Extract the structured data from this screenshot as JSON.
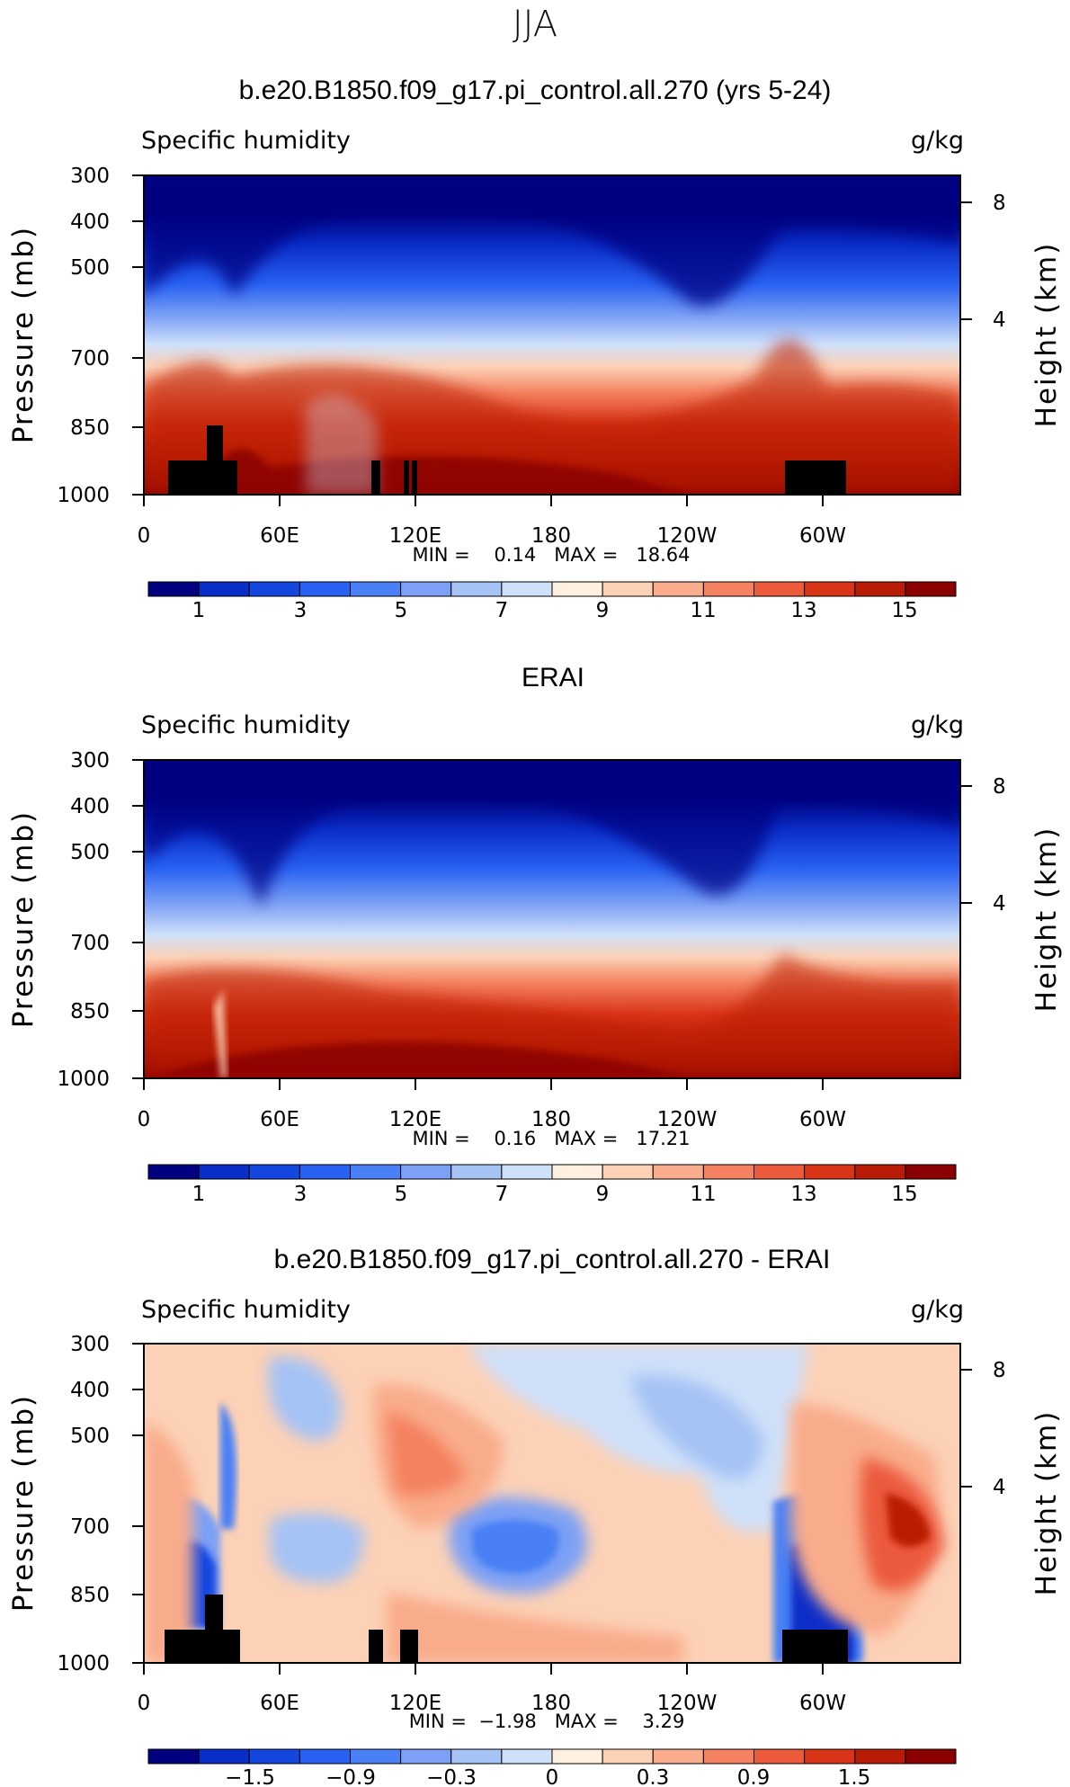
{
  "page": {
    "title": "JJA"
  },
  "colors": {
    "seq": [
      "#000080",
      "#0a2ec8",
      "#1446e0",
      "#2861f2",
      "#4a80f5",
      "#7ba0f5",
      "#a6c3f5",
      "#cfe0f9",
      "#fff0e2",
      "#fcd1b6",
      "#f9ac8b",
      "#f4815f",
      "#ec5a3c",
      "#d93417",
      "#b91c06",
      "#8a0000"
    ],
    "diff": [
      "#000080",
      "#0a2ec8",
      "#1446e0",
      "#2861f2",
      "#4a80f5",
      "#7ba0f5",
      "#a6c3f5",
      "#cfe0f9",
      "#fff0e2",
      "#fcd1b6",
      "#f9ac8b",
      "#f4815f",
      "#ec5a3c",
      "#d93417",
      "#b91c06",
      "#8a0000"
    ]
  },
  "chart_data": [
    {
      "type": "heatmap",
      "title": "b.e20.B1850.f09_g17.pi_control.all.270 (yrs 5-24)",
      "left_label": "Specific humidity",
      "right_label": "g/kg",
      "ylabel": "Pressure (mb)",
      "y2label": "Height (km)",
      "y_ticks": [
        "300",
        "400",
        "500",
        "700",
        "850",
        "1000"
      ],
      "y2_ticks": [
        "8",
        "4"
      ],
      "x_ticks": [
        "0",
        "60E",
        "120E",
        "180",
        "120W",
        "60W"
      ],
      "x_range": [
        0,
        360
      ],
      "y_range": [
        1000,
        300
      ],
      "minmax": "MIN =    0.14   MAX =   18.64",
      "colorbar_labels": [
        "1",
        "3",
        "5",
        "7",
        "9",
        "11",
        "13",
        "15"
      ],
      "min": 0.14,
      "max": 18.64
    },
    {
      "type": "heatmap",
      "title": "ERAI",
      "left_label": "Specific humidity",
      "right_label": "g/kg",
      "ylabel": "Pressure (mb)",
      "y2label": "Height (km)",
      "y_ticks": [
        "300",
        "400",
        "500",
        "700",
        "850",
        "1000"
      ],
      "y2_ticks": [
        "8",
        "4"
      ],
      "x_ticks": [
        "0",
        "60E",
        "120E",
        "180",
        "120W",
        "60W"
      ],
      "x_range": [
        0,
        360
      ],
      "y_range": [
        1000,
        300
      ],
      "minmax": "MIN =    0.16   MAX =   17.21",
      "colorbar_labels": [
        "1",
        "3",
        "5",
        "7",
        "9",
        "11",
        "13",
        "15"
      ],
      "min": 0.16,
      "max": 17.21
    },
    {
      "type": "heatmap",
      "title": "b.e20.B1850.f09_g17.pi_control.all.270 - ERAI",
      "left_label": "Specific humidity",
      "right_label": "g/kg",
      "ylabel": "Pressure (mb)",
      "y2label": "Height (km)",
      "y_ticks": [
        "300",
        "400",
        "500",
        "700",
        "850",
        "1000"
      ],
      "y2_ticks": [
        "8",
        "4"
      ],
      "x_ticks": [
        "0",
        "60E",
        "120E",
        "180",
        "120W",
        "60W"
      ],
      "x_range": [
        0,
        360
      ],
      "y_range": [
        1000,
        300
      ],
      "minmax": "MIN =  −1.98   MAX =    3.29",
      "colorbar_labels": [
        "−1.5",
        "−0.9",
        "−0.3",
        "0",
        "0.3",
        "0.9",
        "1.5"
      ],
      "min": -1.98,
      "max": 3.29
    }
  ]
}
